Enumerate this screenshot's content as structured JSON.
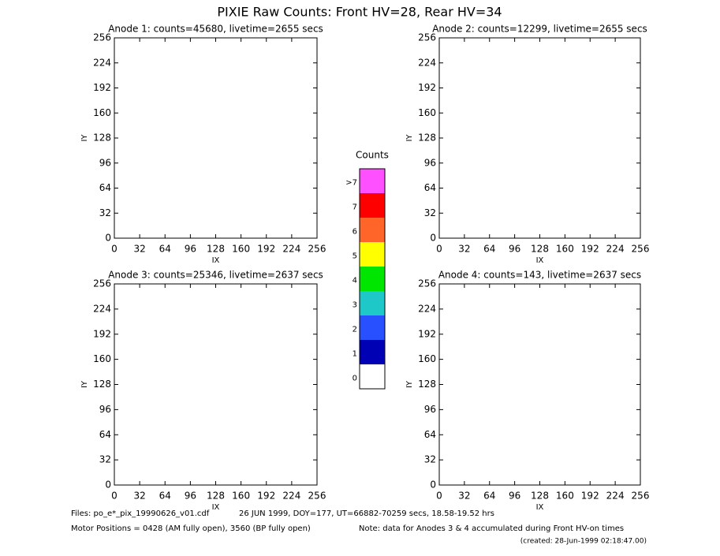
{
  "title": "PIXIE Raw Counts:  Front HV=28, Rear HV=34",
  "chart_data": [
    {
      "type": "heatmap",
      "title": "Anode 1: counts=45680, livetime=2655 secs",
      "xlabel": "IX",
      "ylabel": "IY",
      "xlim": [
        0,
        256
      ],
      "ylim": [
        0,
        256
      ],
      "xticks": [
        0,
        32,
        64,
        96,
        128,
        160,
        192,
        224,
        256
      ],
      "yticks": [
        0,
        32,
        64,
        96,
        128,
        160,
        192,
        224,
        256
      ]
    },
    {
      "type": "heatmap",
      "title": "Anode 2: counts=12299, livetime=2655 secs",
      "xlabel": "IX",
      "ylabel": "IY",
      "xlim": [
        0,
        256
      ],
      "ylim": [
        0,
        256
      ],
      "xticks": [
        0,
        32,
        64,
        96,
        128,
        160,
        192,
        224,
        256
      ],
      "yticks": [
        0,
        32,
        64,
        96,
        128,
        160,
        192,
        224,
        256
      ]
    },
    {
      "type": "heatmap",
      "title": "Anode 3: counts=25346, livetime=2637 secs",
      "xlabel": "IX",
      "ylabel": "IY",
      "xlim": [
        0,
        256
      ],
      "ylim": [
        0,
        256
      ],
      "xticks": [
        0,
        32,
        64,
        96,
        128,
        160,
        192,
        224,
        256
      ],
      "yticks": [
        0,
        32,
        64,
        96,
        128,
        160,
        192,
        224,
        256
      ]
    },
    {
      "type": "heatmap",
      "title": "Anode 4: counts=143, livetime=2637 secs",
      "xlabel": "IX",
      "ylabel": "IY",
      "xlim": [
        0,
        256
      ],
      "ylim": [
        0,
        256
      ],
      "xticks": [
        0,
        32,
        64,
        96,
        128,
        160,
        192,
        224,
        256
      ],
      "yticks": [
        0,
        32,
        64,
        96,
        128,
        160,
        192,
        224,
        256
      ]
    }
  ],
  "colorbar": {
    "title": "Counts",
    "labels": [
      "0",
      "1",
      "2",
      "3",
      "4",
      "5",
      "6",
      "7",
      ">7"
    ],
    "colors": [
      "#ffffff",
      "#0000b4",
      "#2850ff",
      "#1ec8c8",
      "#00e600",
      "#ffff00",
      "#ff6428",
      "#ff0000",
      "#ff50ff"
    ]
  },
  "footer": {
    "files": "Files: po_e*_pix_19990626_v01.cdf",
    "date": "26 JUN 1999, DOY=177, UT=66882-70259 secs, 18.58-19.52 hrs",
    "motor": "Motor Positions = 0428 (AM fully open), 3560 (BP fully open)",
    "note": "Note: data for Anodes 3 & 4 accumulated during Front HV-on times",
    "created": "(created: 28-Jun-1999 02:18:47.00)"
  }
}
